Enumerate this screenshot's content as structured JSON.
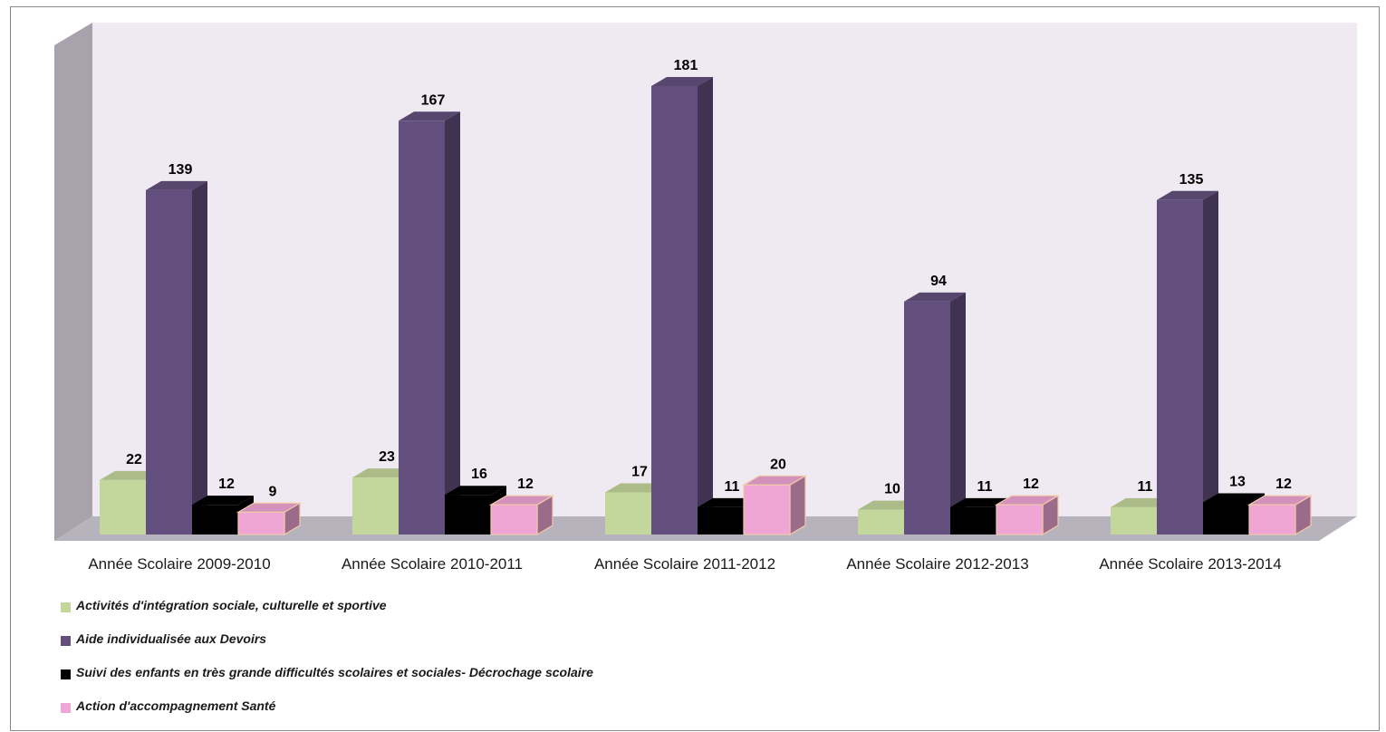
{
  "chart_data": {
    "type": "bar",
    "variant": "3d-clustered",
    "categories": [
      "Année Scolaire 2009-2010",
      "Année Scolaire 2010-2011",
      "Année Scolaire 2011-2012",
      "Année Scolaire 2012-2013",
      "Année Scolaire 2013-2014"
    ],
    "series": [
      {
        "name": "Activités d'intégration sociale, culturelle et sportive",
        "values": [
          22,
          23,
          17,
          10,
          11
        ],
        "color": "#c3d69b"
      },
      {
        "name": "Aide individualisée aux Devoirs",
        "values": [
          139,
          167,
          181,
          94,
          135
        ],
        "color": "#634f7d"
      },
      {
        "name": "Suivi des enfants en très grande difficultés scolaires et sociales- Décrochage scolaire",
        "values": [
          12,
          16,
          11,
          11,
          13
        ],
        "color": "#000000"
      },
      {
        "name": "Action d'accompagnement Santé",
        "values": [
          9,
          12,
          20,
          12,
          12
        ],
        "color": "#efa6d5"
      }
    ],
    "ylim": [
      0,
      190
    ],
    "data_labels": true,
    "grid": false,
    "legend": "bottom-left",
    "title": "",
    "xlabel": "",
    "ylabel": ""
  }
}
